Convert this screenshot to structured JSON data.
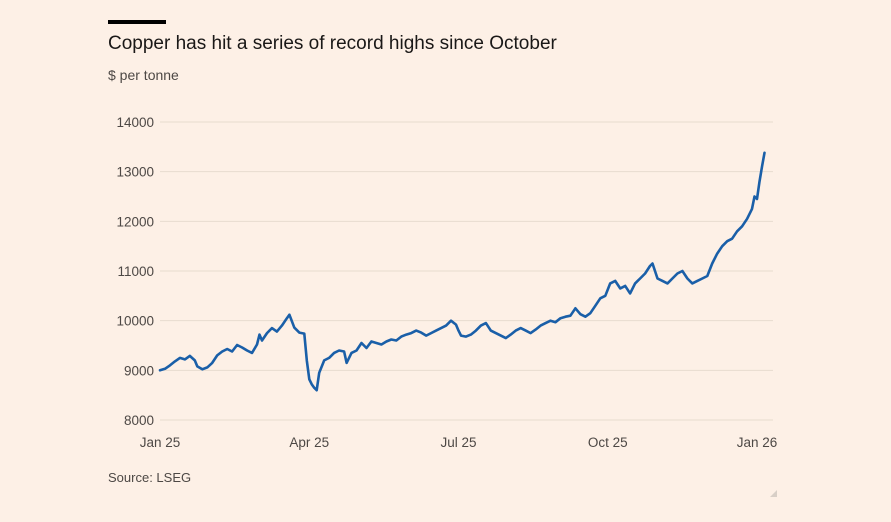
{
  "chart_data": {
    "type": "line",
    "title": "Copper has hit a series of record highs since October",
    "ylabel": "$ per tonne",
    "xlabel": "",
    "source": "Source: LSEG",
    "ylim": [
      8000,
      14000
    ],
    "yticks": [
      "14000",
      "13000",
      "12000",
      "11000",
      "10000",
      "9000",
      "8000"
    ],
    "xticks": [
      {
        "label": "Jan 25",
        "t": 0
      },
      {
        "label": "Apr 25",
        "t": 3
      },
      {
        "label": "Jul 25",
        "t": 6
      },
      {
        "label": "Oct 25",
        "t": 9
      },
      {
        "label": "Jan 26",
        "t": 12
      }
    ],
    "series": [
      {
        "name": "Copper price",
        "color": "#1a5fa8",
        "points": [
          [
            0.0,
            9000
          ],
          [
            0.1,
            9030
          ],
          [
            0.2,
            9100
          ],
          [
            0.3,
            9180
          ],
          [
            0.4,
            9250
          ],
          [
            0.5,
            9220
          ],
          [
            0.6,
            9290
          ],
          [
            0.7,
            9200
          ],
          [
            0.75,
            9080
          ],
          [
            0.85,
            9020
          ],
          [
            0.95,
            9060
          ],
          [
            1.05,
            9150
          ],
          [
            1.15,
            9300
          ],
          [
            1.25,
            9380
          ],
          [
            1.35,
            9430
          ],
          [
            1.45,
            9380
          ],
          [
            1.55,
            9510
          ],
          [
            1.65,
            9460
          ],
          [
            1.75,
            9400
          ],
          [
            1.85,
            9350
          ],
          [
            1.95,
            9520
          ],
          [
            2.0,
            9720
          ],
          [
            2.05,
            9600
          ],
          [
            2.15,
            9750
          ],
          [
            2.25,
            9850
          ],
          [
            2.35,
            9780
          ],
          [
            2.45,
            9900
          ],
          [
            2.55,
            10050
          ],
          [
            2.6,
            10120
          ],
          [
            2.7,
            9860
          ],
          [
            2.8,
            9760
          ],
          [
            2.9,
            9740
          ],
          [
            2.95,
            9200
          ],
          [
            3.0,
            8820
          ],
          [
            3.05,
            8720
          ],
          [
            3.1,
            8650
          ],
          [
            3.15,
            8600
          ],
          [
            3.2,
            8950
          ],
          [
            3.3,
            9200
          ],
          [
            3.4,
            9250
          ],
          [
            3.5,
            9350
          ],
          [
            3.6,
            9400
          ],
          [
            3.7,
            9380
          ],
          [
            3.75,
            9150
          ],
          [
            3.85,
            9350
          ],
          [
            3.95,
            9400
          ],
          [
            4.05,
            9550
          ],
          [
            4.15,
            9450
          ],
          [
            4.25,
            9580
          ],
          [
            4.35,
            9550
          ],
          [
            4.45,
            9520
          ],
          [
            4.55,
            9580
          ],
          [
            4.65,
            9620
          ],
          [
            4.75,
            9600
          ],
          [
            4.85,
            9680
          ],
          [
            4.95,
            9720
          ],
          [
            5.05,
            9750
          ],
          [
            5.15,
            9800
          ],
          [
            5.25,
            9760
          ],
          [
            5.35,
            9700
          ],
          [
            5.45,
            9750
          ],
          [
            5.55,
            9800
          ],
          [
            5.65,
            9850
          ],
          [
            5.75,
            9900
          ],
          [
            5.85,
            10000
          ],
          [
            5.95,
            9920
          ],
          [
            6.0,
            9800
          ],
          [
            6.05,
            9700
          ],
          [
            6.15,
            9680
          ],
          [
            6.25,
            9720
          ],
          [
            6.35,
            9800
          ],
          [
            6.45,
            9900
          ],
          [
            6.55,
            9950
          ],
          [
            6.65,
            9800
          ],
          [
            6.75,
            9750
          ],
          [
            6.85,
            9700
          ],
          [
            6.95,
            9650
          ],
          [
            7.05,
            9720
          ],
          [
            7.15,
            9800
          ],
          [
            7.25,
            9850
          ],
          [
            7.35,
            9800
          ],
          [
            7.45,
            9750
          ],
          [
            7.55,
            9820
          ],
          [
            7.65,
            9900
          ],
          [
            7.75,
            9950
          ],
          [
            7.85,
            10000
          ],
          [
            7.95,
            9970
          ],
          [
            8.05,
            10050
          ],
          [
            8.15,
            10080
          ],
          [
            8.25,
            10100
          ],
          [
            8.35,
            10250
          ],
          [
            8.45,
            10130
          ],
          [
            8.55,
            10080
          ],
          [
            8.65,
            10150
          ],
          [
            8.75,
            10300
          ],
          [
            8.85,
            10450
          ],
          [
            8.95,
            10500
          ],
          [
            9.05,
            10750
          ],
          [
            9.15,
            10800
          ],
          [
            9.25,
            10650
          ],
          [
            9.35,
            10700
          ],
          [
            9.45,
            10550
          ],
          [
            9.55,
            10750
          ],
          [
            9.65,
            10850
          ],
          [
            9.75,
            10950
          ],
          [
            9.85,
            11100
          ],
          [
            9.9,
            11150
          ],
          [
            10.0,
            10850
          ],
          [
            10.1,
            10800
          ],
          [
            10.2,
            10750
          ],
          [
            10.3,
            10850
          ],
          [
            10.4,
            10950
          ],
          [
            10.5,
            11000
          ],
          [
            10.6,
            10850
          ],
          [
            10.7,
            10750
          ],
          [
            10.8,
            10800
          ],
          [
            10.9,
            10850
          ],
          [
            11.0,
            10900
          ],
          [
            11.1,
            11150
          ],
          [
            11.2,
            11350
          ],
          [
            11.3,
            11500
          ],
          [
            11.4,
            11600
          ],
          [
            11.5,
            11650
          ],
          [
            11.6,
            11800
          ],
          [
            11.7,
            11900
          ],
          [
            11.8,
            12050
          ],
          [
            11.9,
            12250
          ],
          [
            11.95,
            12500
          ],
          [
            12.0,
            12450
          ],
          [
            12.05,
            12800
          ],
          [
            12.1,
            13100
          ],
          [
            12.15,
            13380
          ]
        ]
      }
    ]
  }
}
